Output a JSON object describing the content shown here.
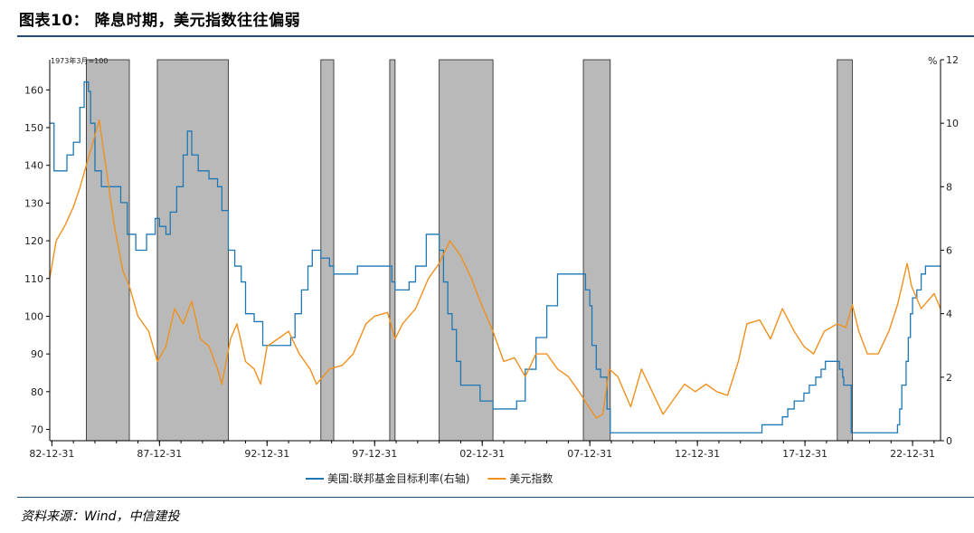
{
  "title": "图表10： 降息时期，美元指数往往偏弱",
  "source": "资料来源：Wind，中信建投",
  "chart_data": {
    "type": "line",
    "left_axis_note": "1973年3月=100",
    "right_axis_unit": "%",
    "x_ticks": [
      "82-12-31",
      "87-12-31",
      "92-12-31",
      "97-12-31",
      "02-12-31",
      "07-12-31",
      "12-12-31",
      "17-12-31",
      "22-12-31"
    ],
    "x_range": [
      1982.9,
      2024.3
    ],
    "left_ylim": [
      67,
      168
    ],
    "left_yticks": [
      70,
      80,
      90,
      100,
      110,
      120,
      130,
      140,
      150,
      160
    ],
    "right_ylim": [
      0,
      12
    ],
    "right_yticks": [
      0,
      2,
      4,
      6,
      8,
      10,
      12
    ],
    "shaded_periods": [
      {
        "start": 1984.6,
        "end": 1986.6
      },
      {
        "start": 1987.9,
        "end": 1991.2
      },
      {
        "start": 1995.5,
        "end": 1996.1
      },
      {
        "start": 1998.7,
        "end": 1998.95
      },
      {
        "start": 2001.0,
        "end": 2003.5
      },
      {
        "start": 2007.7,
        "end": 2008.95
      },
      {
        "start": 2019.5,
        "end": 2020.2
      }
    ],
    "series": [
      {
        "name": "美国:联邦基金目标利率(右轴)",
        "axis": "right",
        "color": "#1f77b4",
        "points": [
          [
            1982.9,
            10.0
          ],
          [
            1983.1,
            8.5
          ],
          [
            1983.5,
            8.5
          ],
          [
            1983.7,
            9.0
          ],
          [
            1984.0,
            9.4
          ],
          [
            1984.2,
            9.4
          ],
          [
            1984.3,
            10.5
          ],
          [
            1984.5,
            11.3
          ],
          [
            1984.7,
            11.0
          ],
          [
            1984.8,
            10.0
          ],
          [
            1985.0,
            8.5
          ],
          [
            1985.3,
            8.0
          ],
          [
            1985.6,
            8.0
          ],
          [
            1985.9,
            8.0
          ],
          [
            1986.2,
            7.5
          ],
          [
            1986.5,
            6.5
          ],
          [
            1986.9,
            6.0
          ],
          [
            1987.4,
            6.5
          ],
          [
            1987.8,
            7.0
          ],
          [
            1988.0,
            6.75
          ],
          [
            1988.3,
            6.5
          ],
          [
            1988.5,
            7.2
          ],
          [
            1988.8,
            8.0
          ],
          [
            1989.1,
            9.0
          ],
          [
            1989.3,
            9.75
          ],
          [
            1989.5,
            9.0
          ],
          [
            1989.8,
            8.5
          ],
          [
            1990.3,
            8.25
          ],
          [
            1990.7,
            8.0
          ],
          [
            1990.9,
            7.25
          ],
          [
            1991.2,
            6.0
          ],
          [
            1991.5,
            5.5
          ],
          [
            1991.8,
            5.0
          ],
          [
            1992.0,
            4.0
          ],
          [
            1992.4,
            3.75
          ],
          [
            1992.8,
            3.0
          ],
          [
            1993.5,
            3.0
          ],
          [
            1994.0,
            3.0
          ],
          [
            1994.1,
            3.25
          ],
          [
            1994.3,
            4.0
          ],
          [
            1994.6,
            4.75
          ],
          [
            1994.9,
            5.5
          ],
          [
            1995.1,
            6.0
          ],
          [
            1995.5,
            5.75
          ],
          [
            1995.9,
            5.5
          ],
          [
            1996.1,
            5.25
          ],
          [
            1997.2,
            5.5
          ],
          [
            1998.7,
            5.5
          ],
          [
            1998.8,
            5.0
          ],
          [
            1998.95,
            4.75
          ],
          [
            1999.5,
            4.75
          ],
          [
            1999.6,
            5.0
          ],
          [
            1999.9,
            5.5
          ],
          [
            2000.4,
            6.5
          ],
          [
            2000.9,
            6.5
          ],
          [
            2001.0,
            6.0
          ],
          [
            2001.2,
            5.0
          ],
          [
            2001.4,
            4.0
          ],
          [
            2001.6,
            3.5
          ],
          [
            2001.8,
            2.5
          ],
          [
            2002.0,
            1.75
          ],
          [
            2002.9,
            1.25
          ],
          [
            2003.5,
            1.0
          ],
          [
            2004.5,
            1.0
          ],
          [
            2004.6,
            1.25
          ],
          [
            2005.0,
            2.25
          ],
          [
            2005.5,
            3.25
          ],
          [
            2006.0,
            4.25
          ],
          [
            2006.5,
            5.25
          ],
          [
            2007.7,
            5.25
          ],
          [
            2007.8,
            4.75
          ],
          [
            2008.0,
            4.25
          ],
          [
            2008.1,
            3.0
          ],
          [
            2008.3,
            2.25
          ],
          [
            2008.5,
            2.0
          ],
          [
            2008.8,
            1.0
          ],
          [
            2008.95,
            0.25
          ],
          [
            2015.9,
            0.25
          ],
          [
            2016.0,
            0.5
          ],
          [
            2016.95,
            0.75
          ],
          [
            2017.2,
            1.0
          ],
          [
            2017.5,
            1.25
          ],
          [
            2017.95,
            1.5
          ],
          [
            2018.2,
            1.75
          ],
          [
            2018.5,
            2.0
          ],
          [
            2018.75,
            2.25
          ],
          [
            2018.95,
            2.5
          ],
          [
            2019.55,
            2.5
          ],
          [
            2019.6,
            2.25
          ],
          [
            2019.75,
            2.0
          ],
          [
            2019.8,
            1.75
          ],
          [
            2020.15,
            0.25
          ],
          [
            2022.2,
            0.25
          ],
          [
            2022.3,
            0.5
          ],
          [
            2022.4,
            1.0
          ],
          [
            2022.5,
            1.75
          ],
          [
            2022.7,
            2.5
          ],
          [
            2022.8,
            3.25
          ],
          [
            2022.9,
            4.0
          ],
          [
            2023.0,
            4.5
          ],
          [
            2023.2,
            4.75
          ],
          [
            2023.4,
            5.25
          ],
          [
            2023.6,
            5.5
          ],
          [
            2024.3,
            5.5
          ]
        ]
      },
      {
        "name": "美元指数",
        "axis": "left",
        "color": "#f0901d",
        "points": [
          [
            1982.9,
            110
          ],
          [
            1983.2,
            120
          ],
          [
            1983.6,
            124
          ],
          [
            1984.0,
            129
          ],
          [
            1984.3,
            134
          ],
          [
            1984.6,
            140
          ],
          [
            1985.0,
            148
          ],
          [
            1985.2,
            152
          ],
          [
            1985.5,
            140
          ],
          [
            1985.9,
            124
          ],
          [
            1986.3,
            112
          ],
          [
            1986.6,
            108
          ],
          [
            1987.0,
            100
          ],
          [
            1987.5,
            96
          ],
          [
            1987.9,
            88
          ],
          [
            1988.3,
            92
          ],
          [
            1988.7,
            102
          ],
          [
            1989.1,
            98
          ],
          [
            1989.5,
            104
          ],
          [
            1989.9,
            94
          ],
          [
            1990.3,
            92
          ],
          [
            1990.7,
            86
          ],
          [
            1990.9,
            82
          ],
          [
            1991.3,
            94
          ],
          [
            1991.6,
            98
          ],
          [
            1992.0,
            88
          ],
          [
            1992.4,
            86
          ],
          [
            1992.7,
            82
          ],
          [
            1993.0,
            92
          ],
          [
            1993.5,
            94
          ],
          [
            1994.0,
            96
          ],
          [
            1994.5,
            90
          ],
          [
            1995.0,
            86
          ],
          [
            1995.3,
            82
          ],
          [
            1995.9,
            86
          ],
          [
            1996.5,
            87
          ],
          [
            1997.0,
            90
          ],
          [
            1997.6,
            98
          ],
          [
            1998.0,
            100
          ],
          [
            1998.6,
            101
          ],
          [
            1998.95,
            94
          ],
          [
            1999.3,
            98
          ],
          [
            1999.9,
            102
          ],
          [
            2000.5,
            110
          ],
          [
            2001.0,
            114
          ],
          [
            2001.5,
            120
          ],
          [
            2002.0,
            116
          ],
          [
            2002.5,
            110
          ],
          [
            2002.9,
            104
          ],
          [
            2003.5,
            96
          ],
          [
            2004.0,
            88
          ],
          [
            2004.5,
            89
          ],
          [
            2005.0,
            84
          ],
          [
            2005.5,
            90
          ],
          [
            2006.0,
            90
          ],
          [
            2006.5,
            86
          ],
          [
            2007.0,
            84
          ],
          [
            2007.5,
            80
          ],
          [
            2007.95,
            76
          ],
          [
            2008.3,
            73
          ],
          [
            2008.6,
            74
          ],
          [
            2008.9,
            86
          ],
          [
            2009.3,
            84
          ],
          [
            2009.9,
            76
          ],
          [
            2010.4,
            86
          ],
          [
            2010.9,
            80
          ],
          [
            2011.4,
            74
          ],
          [
            2011.9,
            78
          ],
          [
            2012.4,
            82
          ],
          [
            2012.9,
            80
          ],
          [
            2013.4,
            82
          ],
          [
            2013.9,
            80
          ],
          [
            2014.4,
            79
          ],
          [
            2014.9,
            88
          ],
          [
            2015.3,
            98
          ],
          [
            2015.9,
            99
          ],
          [
            2016.4,
            94
          ],
          [
            2016.95,
            102
          ],
          [
            2017.5,
            96
          ],
          [
            2017.95,
            92
          ],
          [
            2018.4,
            90
          ],
          [
            2018.9,
            96
          ],
          [
            2019.5,
            98
          ],
          [
            2019.9,
            97
          ],
          [
            2020.2,
            103
          ],
          [
            2020.5,
            96
          ],
          [
            2020.9,
            90
          ],
          [
            2021.4,
            90
          ],
          [
            2021.9,
            96
          ],
          [
            2022.3,
            103
          ],
          [
            2022.75,
            114
          ],
          [
            2022.95,
            108
          ],
          [
            2023.4,
            102
          ],
          [
            2023.7,
            104
          ],
          [
            2024.0,
            106
          ],
          [
            2024.3,
            102
          ]
        ]
      }
    ]
  }
}
